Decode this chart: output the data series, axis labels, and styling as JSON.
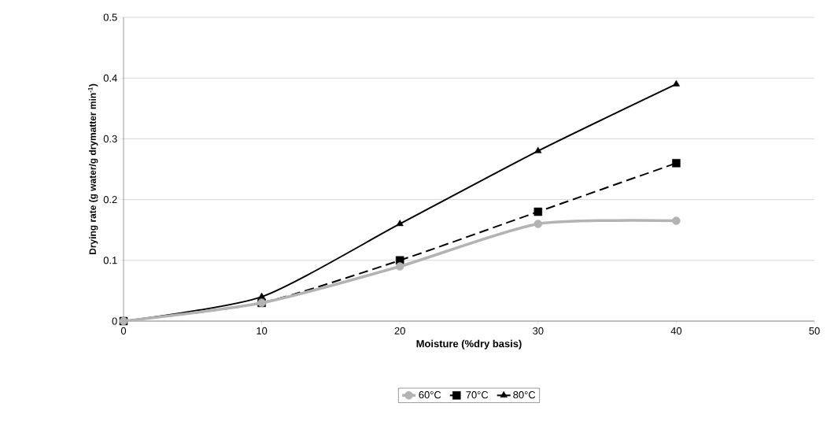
{
  "chart_data": {
    "type": "line",
    "xlabel": "Moisture (%dry basis)",
    "ylabel": "Drying rate (g water/g drymatter min$^{-1}$)",
    "x": [
      0,
      10,
      20,
      30,
      40
    ],
    "series": [
      {
        "name": "60°C",
        "color": "#b3b3b3",
        "values": [
          0,
          0.03,
          0.09,
          0.16,
          0.165
        ],
        "marker": "circle",
        "line_style": "solid"
      },
      {
        "name": "70°C",
        "color": "#000000",
        "values": [
          0,
          0.03,
          0.1,
          0.18,
          0.26
        ],
        "marker": "square",
        "line_style": "dashed"
      },
      {
        "name": "80°C",
        "color": "#000000",
        "values": [
          0,
          0.04,
          0.16,
          0.28,
          0.39
        ],
        "marker": "triangle",
        "line_style": "solid"
      }
    ],
    "xlim": [
      0,
      50
    ],
    "xticks": [
      0,
      10,
      20,
      30,
      40,
      50
    ],
    "ylim": [
      0,
      0.5
    ],
    "yticks": [
      0,
      0.1,
      0.2,
      0.3,
      0.4,
      0.5
    ],
    "grid": "y",
    "legend": "bottom"
  }
}
